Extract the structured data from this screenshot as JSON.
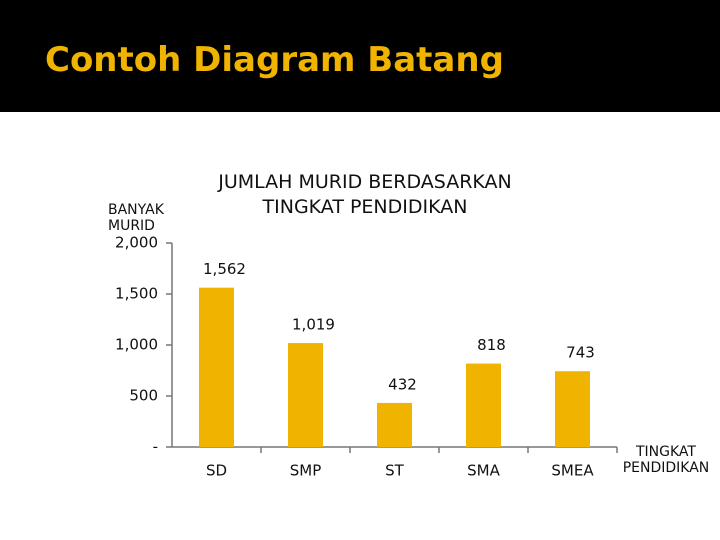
{
  "slide_title": "Contoh Diagram Batang",
  "chart_data": {
    "type": "bar",
    "title": "JUMLAH MURID BERDASARKAN TINGKAT PENDIDIKAN",
    "y_label": "BANYAK MURID",
    "x_label": "TINGKAT PENDIDIKAN",
    "categories": [
      "SD",
      "SMP",
      "ST",
      "SMA",
      "SMEA"
    ],
    "values": [
      1562,
      1019,
      432,
      818,
      743
    ],
    "value_labels": [
      "1,562",
      "1,019",
      "432",
      "818",
      "743"
    ],
    "color": "#f0b400",
    "ylim": [
      0,
      2000
    ],
    "yticks": [
      {
        "value": 0,
        "label": "-"
      },
      500,
      {
        "value": 1000,
        "label": "1,000"
      },
      {
        "value": 1500,
        "label": "1,500"
      },
      {
        "value": 2000,
        "label": "2,000"
      }
    ],
    "grid": false
  }
}
